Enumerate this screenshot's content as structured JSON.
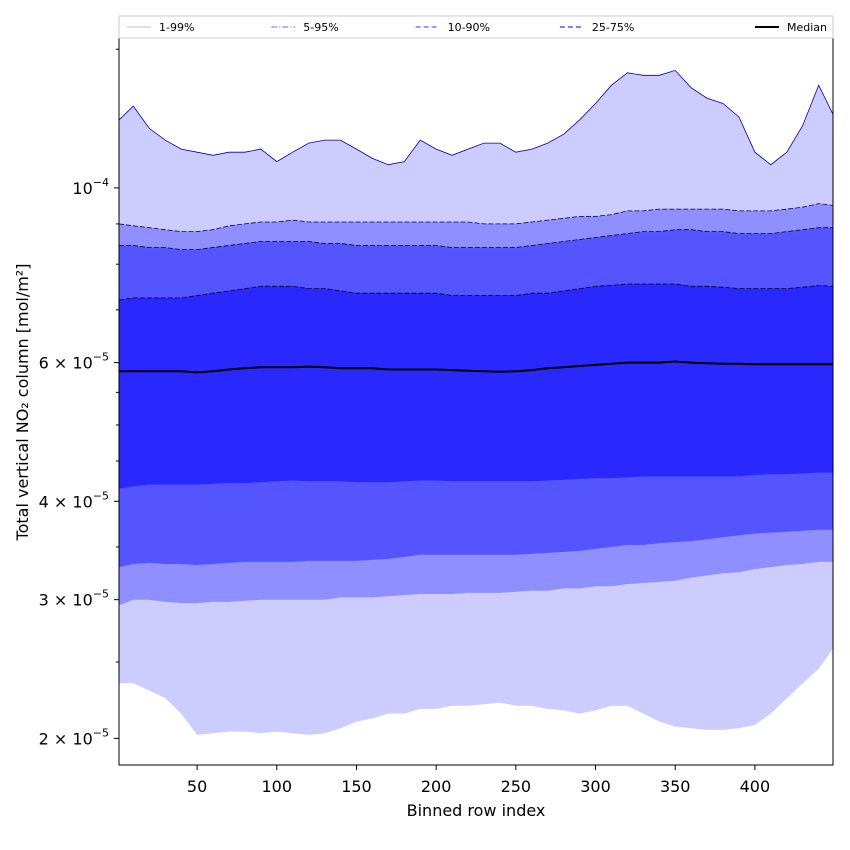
{
  "chart_data": {
    "type": "area",
    "xlabel": "Binned row index",
    "ylabel": "Total vertical NO₂ column [mol/m²]",
    "xlim": [
      1,
      449
    ],
    "ylim": [
      1.85e-05,
      0.000155
    ],
    "yscale": "log",
    "x_ticks": [
      50,
      100,
      150,
      200,
      250,
      300,
      350,
      400
    ],
    "y_ticks": [
      {
        "value": 0.0001,
        "mantissa": "",
        "exponent": "−4",
        "base": "10"
      },
      {
        "value": 6e-05,
        "mantissa": "6",
        "exponent": "−5",
        "base": "10"
      },
      {
        "value": 4e-05,
        "mantissa": "4",
        "exponent": "−5",
        "base": "10"
      },
      {
        "value": 3e-05,
        "mantissa": "3",
        "exponent": "−5",
        "base": "10"
      },
      {
        "value": 2e-05,
        "mantissa": "2",
        "exponent": "−5",
        "base": "10"
      }
    ],
    "y_minor_ticks": [
      2.5e-05,
      3.5e-05,
      4.5e-05,
      5e-05,
      5.5e-05,
      7e-05,
      8e-05,
      9e-05,
      0.00015
    ],
    "grid": false,
    "legend_position": "top, above plot",
    "legend": [
      {
        "label": "1-99%",
        "color": "#cfcfcf",
        "style": "solid"
      },
      {
        "label": "5-95%",
        "color": "#8c8cff",
        "style": "dashdot"
      },
      {
        "label": "10-90%",
        "color": "#5f5fff",
        "style": "dashed"
      },
      {
        "label": "25-75%",
        "color": "#3232ff",
        "style": "dashed"
      },
      {
        "label": "Median",
        "color": "#000000",
        "style": "solid"
      }
    ],
    "x": [
      1,
      10,
      20,
      30,
      40,
      50,
      60,
      70,
      80,
      90,
      100,
      110,
      120,
      130,
      140,
      150,
      160,
      170,
      180,
      190,
      200,
      210,
      220,
      230,
      240,
      250,
      260,
      270,
      280,
      290,
      300,
      310,
      320,
      330,
      340,
      350,
      360,
      370,
      380,
      390,
      400,
      410,
      420,
      430,
      440,
      449
    ],
    "series": [
      {
        "name": "1-99%",
        "fill": "#ccccff",
        "edge": "#0000aa",
        "upper": [
          0.000122,
          0.000127,
          0.000119,
          0.000115,
          0.000112,
          0.000111,
          0.00011,
          0.000111,
          0.000111,
          0.000112,
          0.000108,
          0.000111,
          0.000114,
          0.000115,
          0.000115,
          0.000112,
          0.000109,
          0.000107,
          0.000108,
          0.000115,
          0.000112,
          0.00011,
          0.000112,
          0.000114,
          0.000114,
          0.000111,
          0.000112,
          0.000114,
          0.000117,
          0.000122,
          0.000128,
          0.000135,
          0.00014,
          0.000139,
          0.000139,
          0.000141,
          0.000134,
          0.00013,
          0.000128,
          0.000123,
          0.000111,
          0.000107,
          0.000111,
          0.00012,
          0.000135,
          0.000124
        ],
        "lower": [
          2.35e-05,
          2.35e-05,
          2.3e-05,
          2.25e-05,
          2.15e-05,
          2.02e-05,
          2.03e-05,
          2.04e-05,
          2.04e-05,
          2.03e-05,
          2.04e-05,
          2.03e-05,
          2.02e-05,
          2.03e-05,
          2.06e-05,
          2.1e-05,
          2.12e-05,
          2.15e-05,
          2.15e-05,
          2.18e-05,
          2.18e-05,
          2.2e-05,
          2.2e-05,
          2.21e-05,
          2.22e-05,
          2.2e-05,
          2.2e-05,
          2.18e-05,
          2.17e-05,
          2.15e-05,
          2.17e-05,
          2.2e-05,
          2.2e-05,
          2.15e-05,
          2.1e-05,
          2.07e-05,
          2.06e-05,
          2.05e-05,
          2.05e-05,
          2.06e-05,
          2.08e-05,
          2.15e-05,
          2.25e-05,
          2.35e-05,
          2.45e-05,
          2.6e-05
        ]
      },
      {
        "name": "5-95%",
        "fill": "#8f8fff",
        "edge": "#000066",
        "upper": [
          9e-05,
          8.95e-05,
          8.9e-05,
          8.85e-05,
          8.8e-05,
          8.8e-05,
          8.85e-05,
          8.95e-05,
          9e-05,
          9.05e-05,
          9.05e-05,
          9.1e-05,
          9.05e-05,
          9.05e-05,
          9.05e-05,
          9.05e-05,
          9.05e-05,
          9.05e-05,
          9.05e-05,
          9.05e-05,
          9.05e-05,
          9.05e-05,
          9.05e-05,
          9e-05,
          9e-05,
          9e-05,
          9.05e-05,
          9.1e-05,
          9.15e-05,
          9.2e-05,
          9.2e-05,
          9.25e-05,
          9.35e-05,
          9.35e-05,
          9.4e-05,
          9.4e-05,
          9.4e-05,
          9.4e-05,
          9.4e-05,
          9.35e-05,
          9.35e-05,
          9.35e-05,
          9.4e-05,
          9.45e-05,
          9.55e-05,
          9.5e-05
        ],
        "lower": [
          2.95e-05,
          3e-05,
          3e-05,
          2.98e-05,
          2.97e-05,
          2.97e-05,
          2.98e-05,
          2.98e-05,
          2.99e-05,
          3e-05,
          3e-05,
          3e-05,
          3e-05,
          3e-05,
          3.02e-05,
          3.02e-05,
          3.02e-05,
          3.03e-05,
          3.04e-05,
          3.05e-05,
          3.05e-05,
          3.05e-05,
          3.06e-05,
          3.06e-05,
          3.06e-05,
          3.07e-05,
          3.08e-05,
          3.08e-05,
          3.1e-05,
          3.1e-05,
          3.12e-05,
          3.12e-05,
          3.14e-05,
          3.15e-05,
          3.16e-05,
          3.17e-05,
          3.2e-05,
          3.22e-05,
          3.24e-05,
          3.25e-05,
          3.28e-05,
          3.3e-05,
          3.32e-05,
          3.33e-05,
          3.35e-05,
          3.35e-05
        ]
      },
      {
        "name": "10-90%",
        "fill": "#5555ff",
        "edge": "#000044",
        "upper": [
          8.45e-05,
          8.45e-05,
          8.4e-05,
          8.4e-05,
          8.35e-05,
          8.35e-05,
          8.4e-05,
          8.45e-05,
          8.5e-05,
          8.55e-05,
          8.55e-05,
          8.55e-05,
          8.55e-05,
          8.5e-05,
          8.5e-05,
          8.45e-05,
          8.45e-05,
          8.45e-05,
          8.45e-05,
          8.45e-05,
          8.45e-05,
          8.4e-05,
          8.4e-05,
          8.4e-05,
          8.4e-05,
          8.4e-05,
          8.45e-05,
          8.5e-05,
          8.55e-05,
          8.6e-05,
          8.65e-05,
          8.7e-05,
          8.75e-05,
          8.8e-05,
          8.8e-05,
          8.85e-05,
          8.85e-05,
          8.8e-05,
          8.8e-05,
          8.75e-05,
          8.75e-05,
          8.75e-05,
          8.8e-05,
          8.85e-05,
          8.9e-05,
          8.9e-05
        ],
        "lower": [
          3.3e-05,
          3.33e-05,
          3.34e-05,
          3.33e-05,
          3.33e-05,
          3.32e-05,
          3.33e-05,
          3.34e-05,
          3.35e-05,
          3.35e-05,
          3.35e-05,
          3.35e-05,
          3.36e-05,
          3.36e-05,
          3.36e-05,
          3.36e-05,
          3.37e-05,
          3.38e-05,
          3.4e-05,
          3.42e-05,
          3.42e-05,
          3.42e-05,
          3.42e-05,
          3.42e-05,
          3.42e-05,
          3.42e-05,
          3.43e-05,
          3.44e-05,
          3.45e-05,
          3.46e-05,
          3.48e-05,
          3.5e-05,
          3.52e-05,
          3.52e-05,
          3.54e-05,
          3.55e-05,
          3.56e-05,
          3.58e-05,
          3.6e-05,
          3.62e-05,
          3.64e-05,
          3.65e-05,
          3.66e-05,
          3.67e-05,
          3.68e-05,
          3.68e-05
        ]
      },
      {
        "name": "25-75%",
        "fill": "#2828ff",
        "edge": "#000022",
        "upper": [
          7.2e-05,
          7.25e-05,
          7.25e-05,
          7.25e-05,
          7.25e-05,
          7.3e-05,
          7.35e-05,
          7.4e-05,
          7.45e-05,
          7.5e-05,
          7.5e-05,
          7.5e-05,
          7.45e-05,
          7.45e-05,
          7.4e-05,
          7.35e-05,
          7.35e-05,
          7.35e-05,
          7.35e-05,
          7.35e-05,
          7.35e-05,
          7.3e-05,
          7.3e-05,
          7.3e-05,
          7.3e-05,
          7.3e-05,
          7.35e-05,
          7.35e-05,
          7.4e-05,
          7.45e-05,
          7.5e-05,
          7.52e-05,
          7.55e-05,
          7.55e-05,
          7.55e-05,
          7.55e-05,
          7.5e-05,
          7.5e-05,
          7.48e-05,
          7.45e-05,
          7.45e-05,
          7.45e-05,
          7.45e-05,
          7.48e-05,
          7.52e-05,
          7.5e-05
        ],
        "lower": [
          4.15e-05,
          4.18e-05,
          4.2e-05,
          4.2e-05,
          4.2e-05,
          4.2e-05,
          4.21e-05,
          4.22e-05,
          4.22e-05,
          4.23e-05,
          4.24e-05,
          4.25e-05,
          4.24e-05,
          4.24e-05,
          4.24e-05,
          4.23e-05,
          4.23e-05,
          4.23e-05,
          4.24e-05,
          4.25e-05,
          4.25e-05,
          4.24e-05,
          4.24e-05,
          4.24e-05,
          4.24e-05,
          4.24e-05,
          4.24e-05,
          4.25e-05,
          4.26e-05,
          4.27e-05,
          4.28e-05,
          4.28e-05,
          4.29e-05,
          4.3e-05,
          4.3e-05,
          4.3e-05,
          4.3e-05,
          4.3e-05,
          4.3e-05,
          4.3e-05,
          4.32e-05,
          4.33e-05,
          4.33e-05,
          4.34e-05,
          4.35e-05,
          4.35e-05
        ]
      },
      {
        "name": "Median",
        "line": "#000000",
        "values": [
          5.85e-05,
          5.85e-05,
          5.85e-05,
          5.85e-05,
          5.85e-05,
          5.83e-05,
          5.85e-05,
          5.88e-05,
          5.9e-05,
          5.92e-05,
          5.92e-05,
          5.92e-05,
          5.93e-05,
          5.92e-05,
          5.9e-05,
          5.9e-05,
          5.9e-05,
          5.88e-05,
          5.88e-05,
          5.88e-05,
          5.88e-05,
          5.87e-05,
          5.86e-05,
          5.85e-05,
          5.84e-05,
          5.85e-05,
          5.87e-05,
          5.9e-05,
          5.92e-05,
          5.94e-05,
          5.96e-05,
          5.98e-05,
          6e-05,
          6e-05,
          6e-05,
          6.02e-05,
          6e-05,
          5.99e-05,
          5.98e-05,
          5.98e-05,
          5.97e-05,
          5.97e-05,
          5.97e-05,
          5.97e-05,
          5.97e-05,
          5.97e-05
        ]
      }
    ]
  }
}
